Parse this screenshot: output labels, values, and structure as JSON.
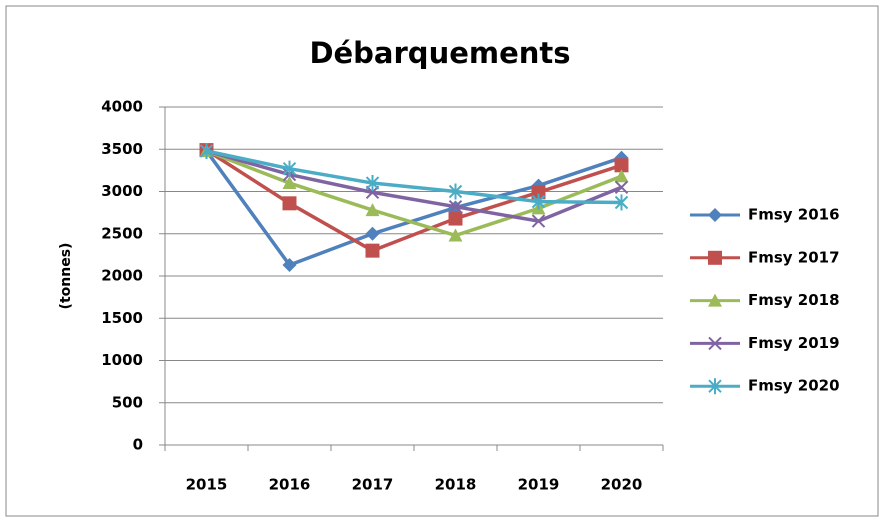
{
  "chart_data": {
    "type": "line",
    "title": "Débarquements",
    "y_label": "(tonnes)",
    "categories": [
      "2015",
      "2016",
      "2017",
      "2018",
      "2019",
      "2020"
    ],
    "series": [
      {
        "name": "Fmsy 2016",
        "color": "#4F81BD",
        "marker": "diamond",
        "values": [
          3480,
          2130,
          2500,
          2810,
          3070,
          3400
        ]
      },
      {
        "name": "Fmsy 2017",
        "color": "#C0504D",
        "marker": "square",
        "values": [
          3490,
          2860,
          2300,
          2680,
          2990,
          3310
        ]
      },
      {
        "name": "Fmsy 2018",
        "color": "#9BBB59",
        "marker": "triangle",
        "values": [
          3480,
          3100,
          2780,
          2480,
          2800,
          3180
        ]
      },
      {
        "name": "Fmsy 2019",
        "color": "#8064A2",
        "marker": "x",
        "values": [
          3480,
          3200,
          2990,
          2820,
          2650,
          3050
        ]
      },
      {
        "name": "Fmsy 2020",
        "color": "#4BACC6",
        "marker": "star",
        "values": [
          3480,
          3270,
          3100,
          3000,
          2880,
          2870
        ]
      }
    ],
    "ylim": [
      0,
      4000
    ],
    "yticks": [
      0,
      500,
      1000,
      1500,
      2000,
      2500,
      3000,
      3500,
      4000
    ],
    "grid": true,
    "legend": "right"
  }
}
